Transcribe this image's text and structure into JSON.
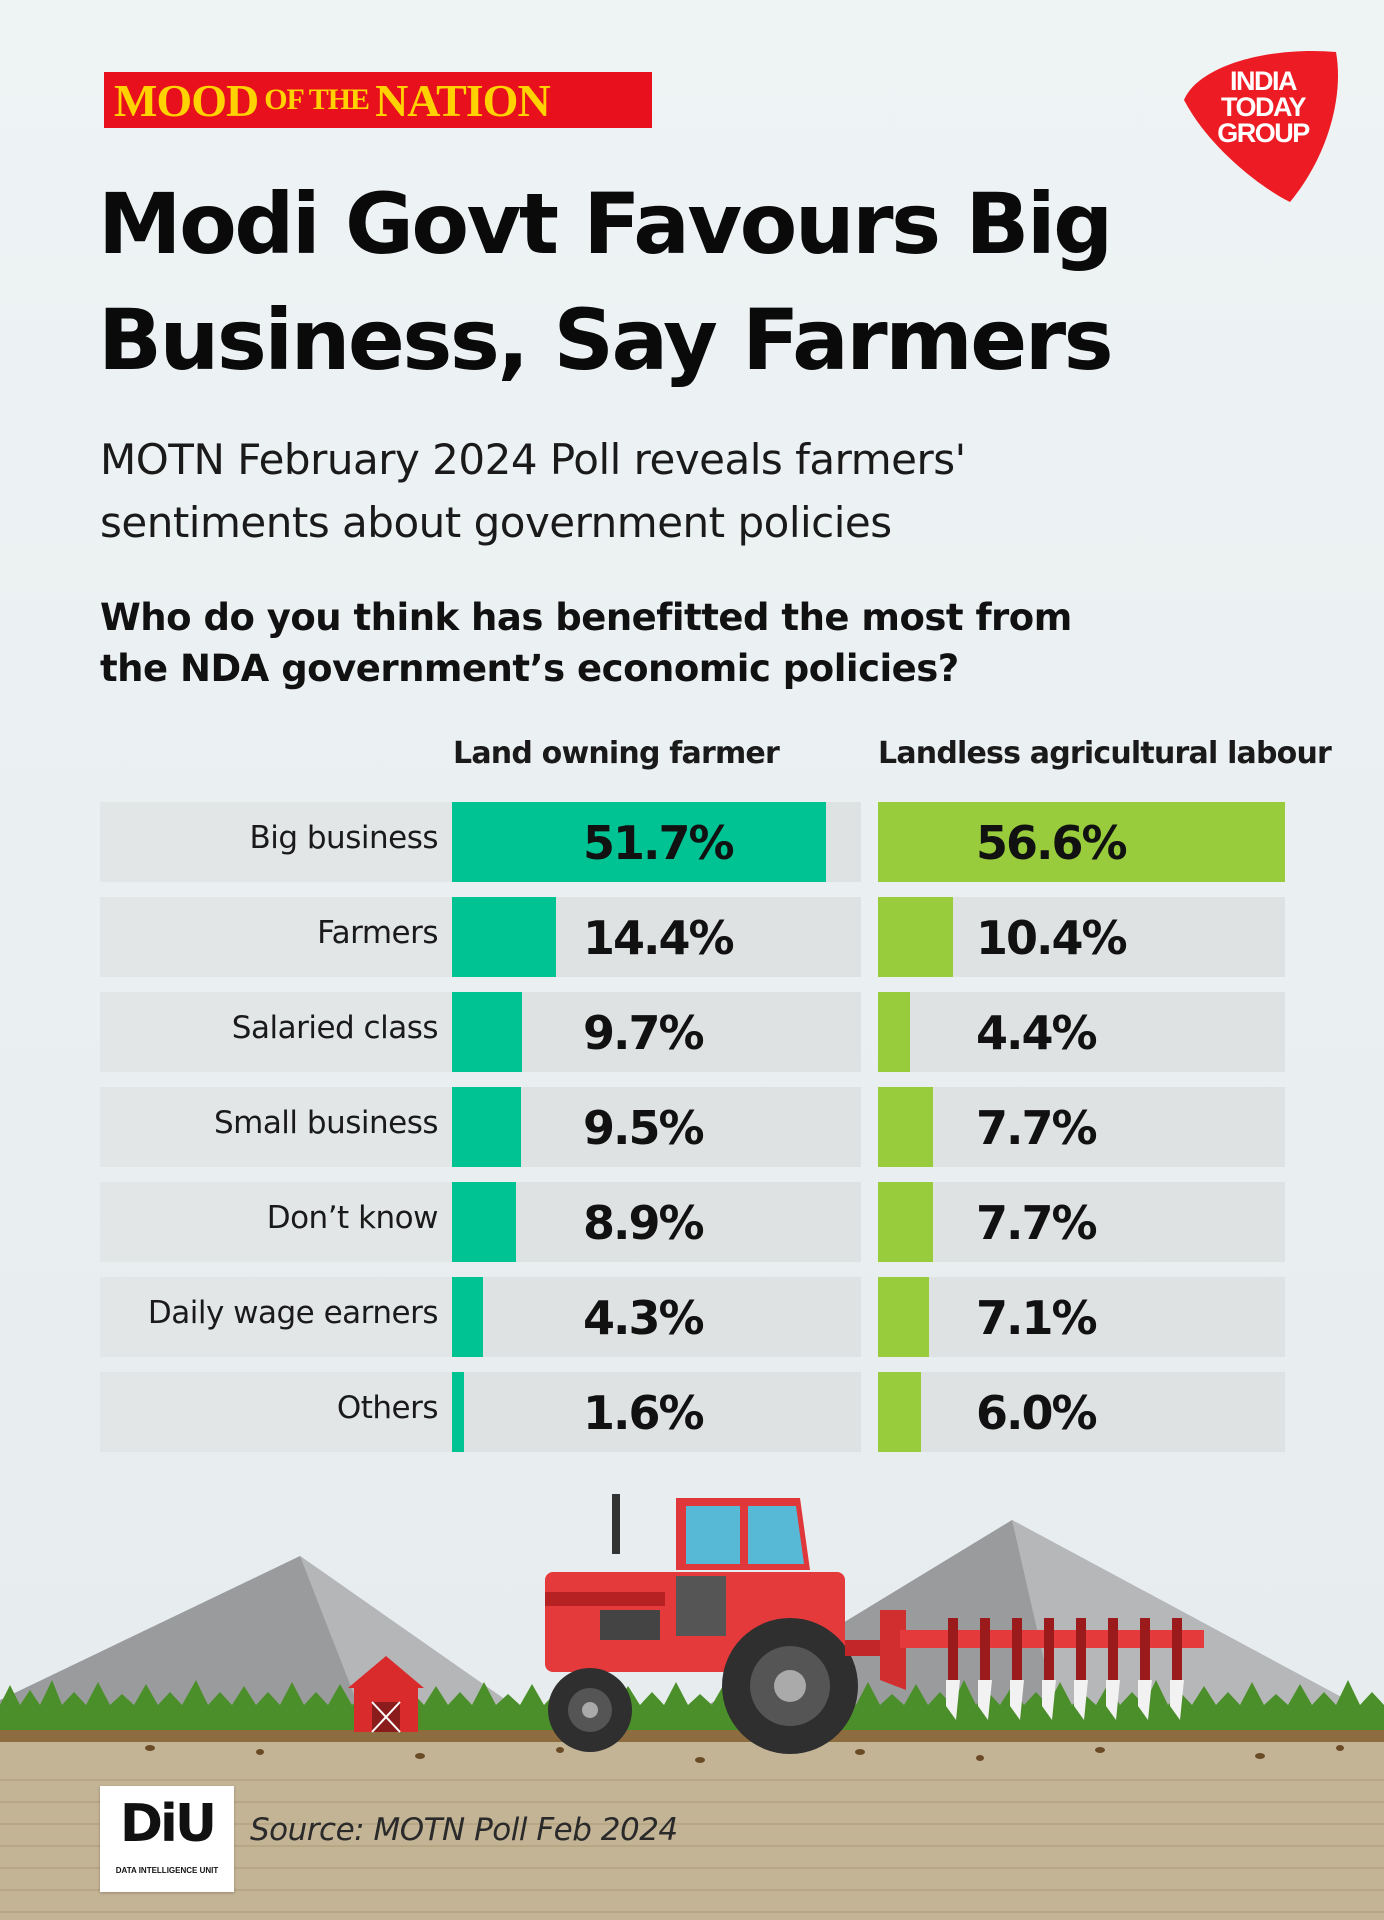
{
  "header": {
    "banner_big_1": "MOOD",
    "banner_small": "OF THE",
    "banner_big_2": "NATION",
    "publisher_logo": [
      "INDIA",
      "TODAY",
      "GROUP"
    ]
  },
  "title": "Modi Govt Favours Big Business, Say Farmers",
  "subtitle": "MOTN February 2024 Poll reveals farmers' sentiments about government policies",
  "question": "Who do you think has benefitted the most from the NDA government’s economic policies?",
  "colors": {
    "land_owning": "#00c394",
    "landless": "#98cc3c",
    "banner_red": "#e8101c",
    "banner_yellow": "#ffd200",
    "logo_red": "#ed1c24"
  },
  "chart_data": {
    "type": "bar",
    "orientation": "horizontal",
    "categories": [
      "Big business",
      "Farmers",
      "Salaried class",
      "Small business",
      "Don’t know",
      "Daily wage earners",
      "Others"
    ],
    "series": [
      {
        "name": "Land owning farmer",
        "values": [
          51.7,
          14.4,
          9.7,
          9.5,
          8.9,
          4.3,
          1.6
        ],
        "labels": [
          "51.7%",
          "14.4%",
          "9.7%",
          "9.5%",
          "8.9%",
          "4.3%",
          "1.6%"
        ]
      },
      {
        "name": "Landless agricultural labour",
        "values": [
          56.6,
          10.4,
          4.4,
          7.7,
          7.7,
          7.1,
          6.0
        ],
        "labels": [
          "56.6%",
          "10.4%",
          "4.4%",
          "7.7%",
          "7.7%",
          "7.1%",
          "6.0%"
        ]
      }
    ],
    "unit": "%",
    "xlim": [
      0,
      56.6
    ],
    "grid": false,
    "legend": "column headers"
  },
  "footer": {
    "logo_text": "DiU",
    "logo_subtext": "DATA INTELLIGENCE UNIT",
    "source": "Source: MOTN Poll Feb 2024"
  }
}
